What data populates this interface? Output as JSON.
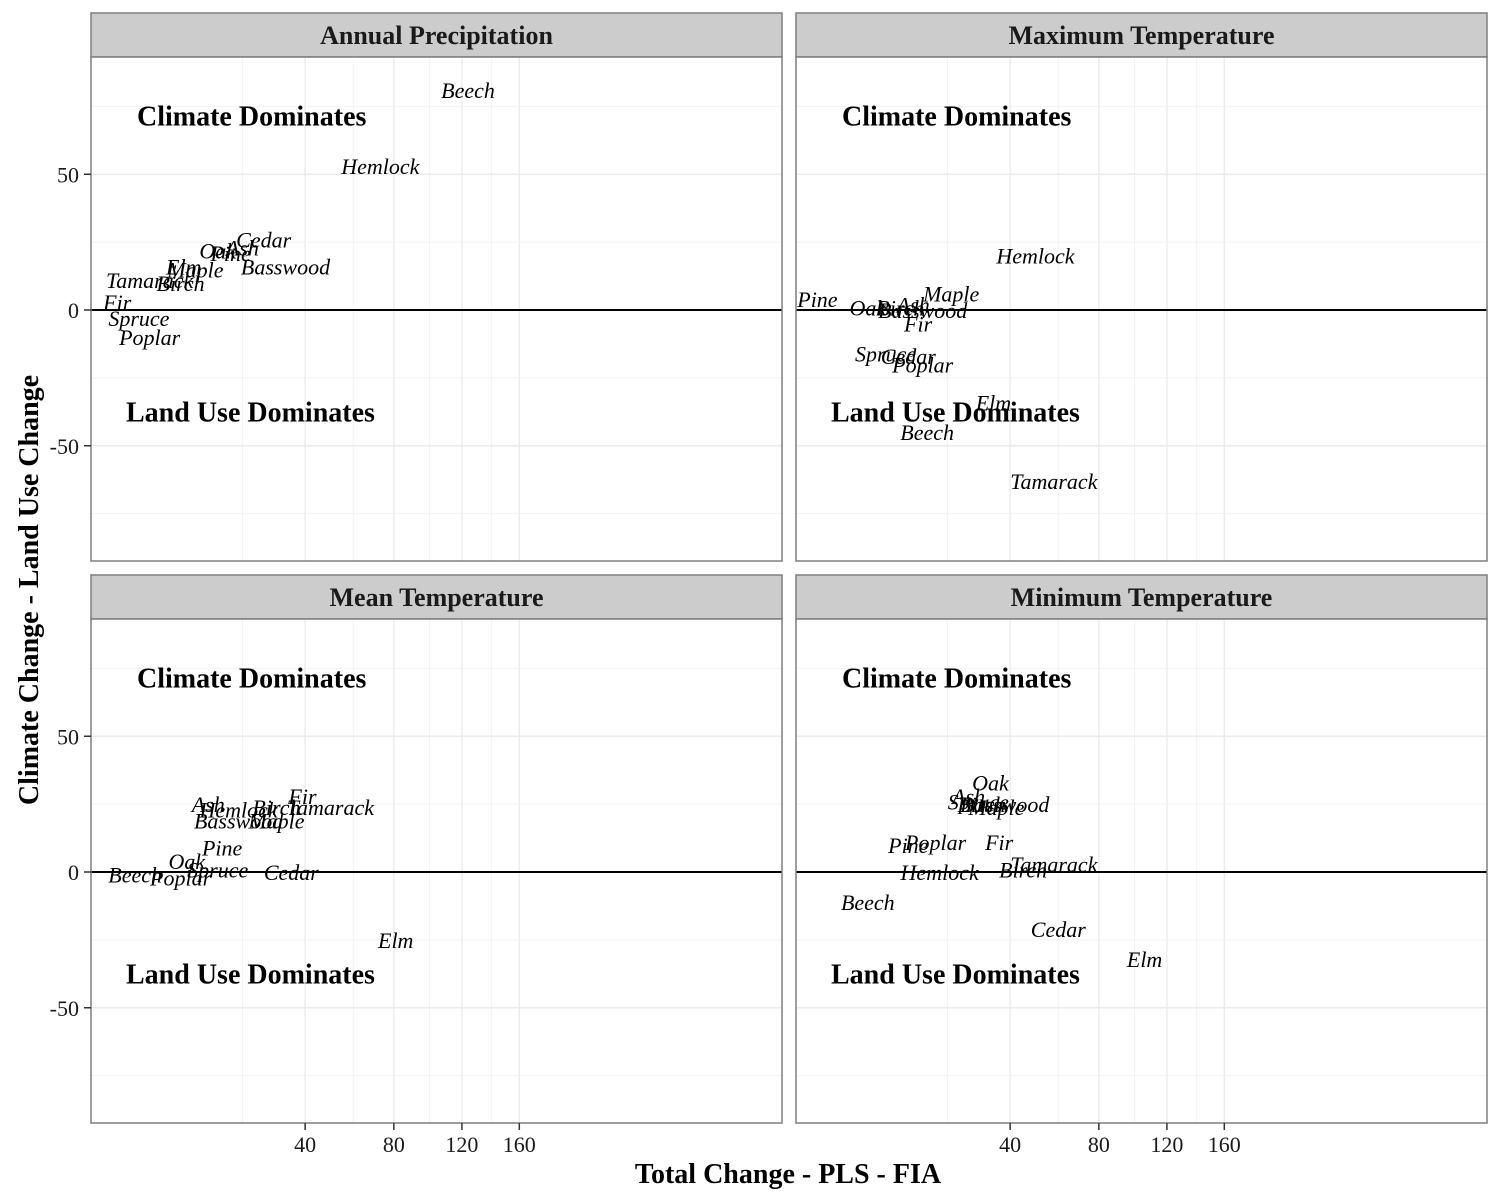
{
  "chart_data": {
    "type": "scatter",
    "xlabel": "Total Change - PLS - FIA",
    "ylabel": "Climate Change - Land Use Change",
    "x_scale": "sqrt",
    "xlim": [
      0,
      165
    ],
    "ylim": [
      -95,
      95
    ],
    "x_ticks": [
      40,
      80,
      120,
      160
    ],
    "y_ticks": [
      50,
      0,
      -50
    ],
    "grid": true,
    "reference_line_y": 0,
    "annotations": [
      "Climate Dominates",
      "Land Use Dominates"
    ],
    "panels": [
      {
        "title": "Annual Precipitation",
        "points": [
          {
            "label": "Beech",
            "x": 124,
            "y": 81
          },
          {
            "label": "Hemlock",
            "x": 73,
            "y": 53
          },
          {
            "label": "Cedar",
            "x": 26,
            "y": 26
          },
          {
            "label": "Oak",
            "x": 14,
            "y": 22
          },
          {
            "label": "Ash",
            "x": 20,
            "y": 23
          },
          {
            "label": "Pine",
            "x": 17,
            "y": 21
          },
          {
            "label": "Elm",
            "x": 7.5,
            "y": 16
          },
          {
            "label": "Maple",
            "x": 9.5,
            "y": 15
          },
          {
            "label": "Basswood",
            "x": 33,
            "y": 16
          },
          {
            "label": "Tamarack",
            "x": 3,
            "y": 11
          },
          {
            "label": "Birch",
            "x": 7,
            "y": 10
          },
          {
            "label": "Fir",
            "x": 0.6,
            "y": 3
          },
          {
            "label": "Spruce",
            "x": 2,
            "y": -3
          },
          {
            "label": "Poplar",
            "x": 3,
            "y": -10
          }
        ]
      },
      {
        "title": "Maximum Temperature",
        "points": [
          {
            "label": "Hemlock",
            "x": 50,
            "y": 20
          },
          {
            "label": "Pine",
            "x": 0.4,
            "y": 4
          },
          {
            "label": "Maple",
            "x": 21,
            "y": 6
          },
          {
            "label": "Oak",
            "x": 4.5,
            "y": 1
          },
          {
            "label": "Birch",
            "x": 9.5,
            "y": 1
          },
          {
            "label": "Ash",
            "x": 12,
            "y": 2
          },
          {
            "label": "Basswood",
            "x": 14,
            "y": 0
          },
          {
            "label": "Fir",
            "x": 13,
            "y": -5
          },
          {
            "label": "Spruce",
            "x": 7,
            "y": -16
          },
          {
            "label": "Cedar",
            "x": 11,
            "y": -17
          },
          {
            "label": "Poplar",
            "x": 14,
            "y": -20
          },
          {
            "label": "Elm",
            "x": 34,
            "y": -34
          },
          {
            "label": "Beech",
            "x": 15,
            "y": -45
          },
          {
            "label": "Tamarack",
            "x": 58,
            "y": -63
          }
        ]
      },
      {
        "title": "Mean Temperature",
        "points": [
          {
            "label": "Fir",
            "x": 39,
            "y": 28
          },
          {
            "label": "Ash",
            "x": 12,
            "y": 25
          },
          {
            "label": "Hemlock",
            "x": 19,
            "y": 23
          },
          {
            "label": "Birch",
            "x": 30,
            "y": 24
          },
          {
            "label": "Tamarack",
            "x": 50,
            "y": 24
          },
          {
            "label": "Basswood",
            "x": 19,
            "y": 19
          },
          {
            "label": "Maple",
            "x": 30,
            "y": 19
          },
          {
            "label": "Pine",
            "x": 15,
            "y": 9
          },
          {
            "label": "Oak",
            "x": 8,
            "y": 4
          },
          {
            "label": "Spruce",
            "x": 14,
            "y": 1
          },
          {
            "label": "Cedar",
            "x": 35,
            "y": 0
          },
          {
            "label": "Beech",
            "x": 1.7,
            "y": -1
          },
          {
            "label": "Poplar",
            "x": 7,
            "y": -2
          },
          {
            "label": "Elm",
            "x": 81,
            "y": -25
          }
        ]
      },
      {
        "title": "Minimum Temperature",
        "points": [
          {
            "label": "Oak",
            "x": 33,
            "y": 33
          },
          {
            "label": "Ash",
            "x": 26,
            "y": 28
          },
          {
            "label": "Spruce",
            "x": 29,
            "y": 26
          },
          {
            "label": "Birch",
            "x": 30,
            "y": 25
          },
          {
            "label": "Basswood",
            "x": 38,
            "y": 25
          },
          {
            "label": "Maple",
            "x": 35,
            "y": 24
          },
          {
            "label": "Pine",
            "x": 11,
            "y": 10
          },
          {
            "label": "Poplar",
            "x": 17,
            "y": 11
          },
          {
            "label": "Fir",
            "x": 36,
            "y": 11
          },
          {
            "label": "Hemlock",
            "x": 18,
            "y": 0
          },
          {
            "label": "Birch",
            "x": 45,
            "y": 1
          },
          {
            "label": "Tamarack",
            "x": 58,
            "y": 3
          },
          {
            "label": "Beech",
            "x": 4.5,
            "y": -11
          },
          {
            "label": "Cedar",
            "x": 60,
            "y": -21
          },
          {
            "label": "Elm",
            "x": 106,
            "y": -32
          }
        ]
      }
    ]
  }
}
